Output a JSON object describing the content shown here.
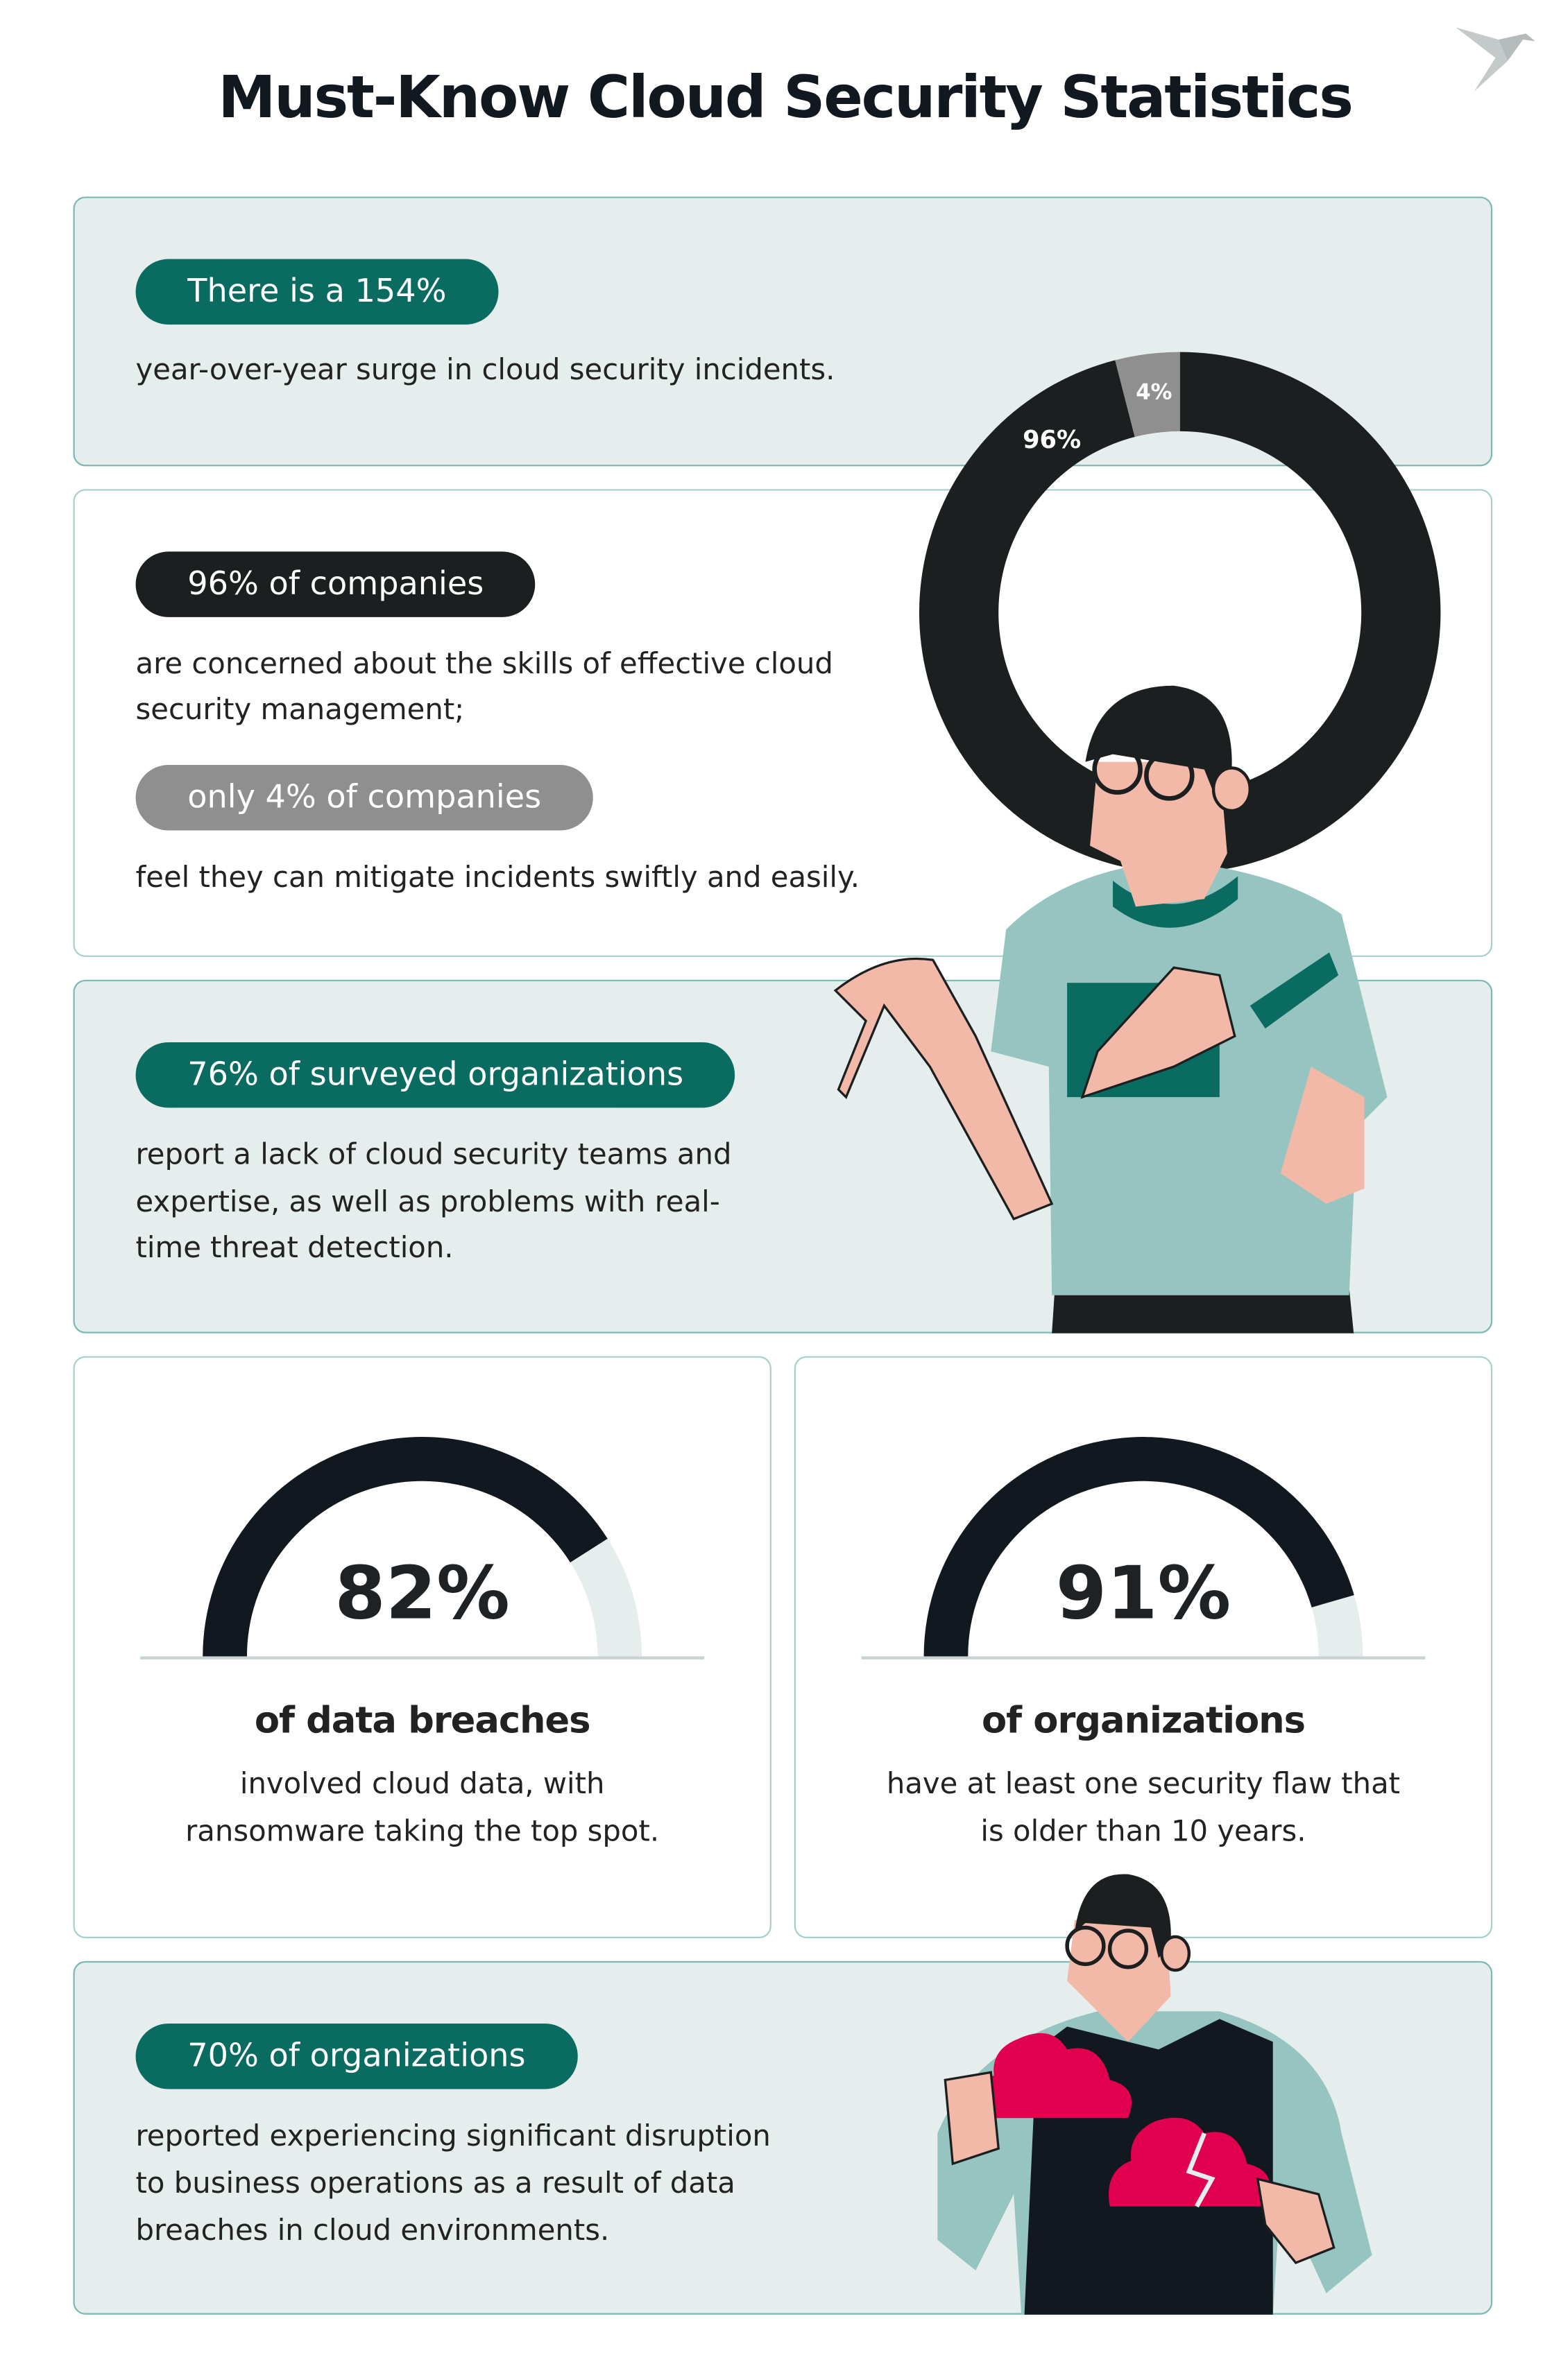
{
  "title": "Must-Know Cloud Security Statistics",
  "colors": {
    "teal": "#0a6b61",
    "dark": "#1b1f20",
    "grey": "#8f8f8f",
    "tint": "#e5eeed",
    "accent_red": "#e0004d",
    "shirt": "#96c4c0"
  },
  "logo": {
    "icon": "origami-bird-icon"
  },
  "stat1": {
    "pill": "There is a 154%",
    "text": "year-over-year surge in cloud security incidents."
  },
  "stat2": {
    "pill": "96% of companies",
    "text_lines": [
      "are concerned about the skills of effective cloud",
      "security management;"
    ],
    "pill2": "only 4% of companies",
    "text2": "feel they can mitigate incidents swiftly and easily."
  },
  "stat3": {
    "pill": "76% of surveyed organizations",
    "text_lines": [
      "report a lack of cloud security teams and",
      "expertise, as well as problems with real-",
      "time threat detection."
    ]
  },
  "gauge1": {
    "value_label": "82%",
    "heading": "of data breaches",
    "text_lines": [
      "involved cloud data, with",
      "ransomware taking the top spot."
    ]
  },
  "gauge2": {
    "value_label": "91%",
    "heading": "of organizations",
    "text_lines": [
      "have at least one security flaw that",
      "is older than 10 years."
    ]
  },
  "stat6": {
    "pill": "70% of organizations",
    "text_lines": [
      "reported experiencing significant disruption",
      "to business operations as a result of data",
      "breaches in cloud environments."
    ]
  },
  "chart_data": [
    {
      "type": "pie",
      "variant": "donut",
      "labels": [
        "96%",
        "4%"
      ],
      "values": [
        96,
        4
      ],
      "colors": [
        "#1b1f20",
        "#8f8f8f"
      ]
    },
    {
      "type": "gauge",
      "value": 82,
      "max": 100,
      "label": "82%"
    },
    {
      "type": "gauge",
      "value": 91,
      "max": 100,
      "label": "91%"
    }
  ]
}
